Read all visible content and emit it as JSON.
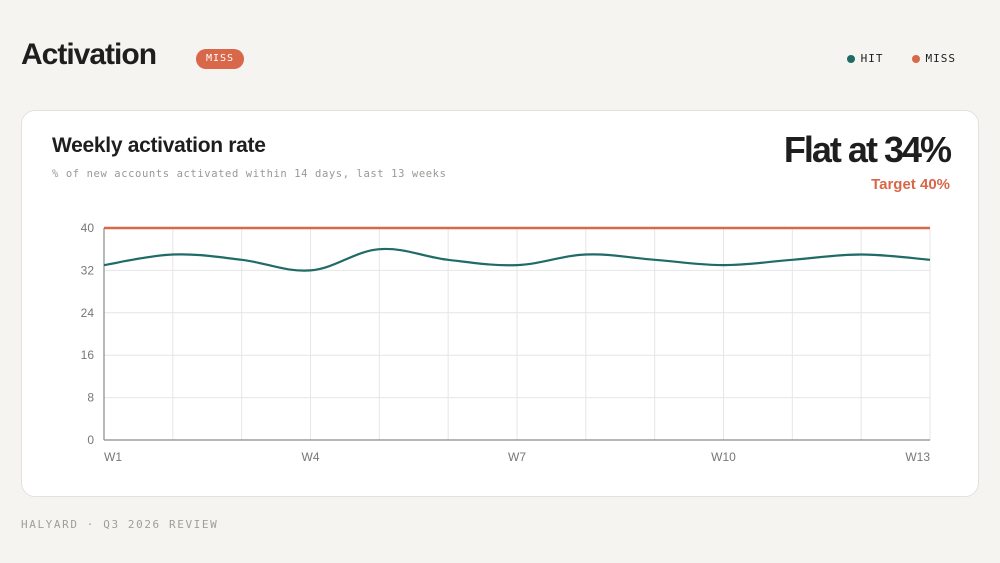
{
  "header": {
    "title": "Activation",
    "status_badge": "MISS",
    "legend": [
      {
        "label": "HIT",
        "color": "#1f6b66"
      },
      {
        "label": "MISS",
        "color": "#d9674a"
      }
    ]
  },
  "card": {
    "title": "Weekly activation rate",
    "subtitle": "% of new accounts activated within 14 days, last 13 weeks",
    "headline": "Flat at 34%",
    "target_label": "Target 40%"
  },
  "footer": {
    "text": "HALYARD · Q3 2026 REVIEW"
  },
  "colors": {
    "series": "#1f6b66",
    "target": "#d9674a",
    "grid": "#e6e6e6",
    "axis": "#8a8a8a"
  },
  "chart_data": {
    "type": "line",
    "x": [
      "W1",
      "W2",
      "W3",
      "W4",
      "W5",
      "W6",
      "W7",
      "W8",
      "W9",
      "W10",
      "W11",
      "W12",
      "W13"
    ],
    "x_tick_labels": [
      "W1",
      "W4",
      "W7",
      "W10",
      "W13"
    ],
    "series": [
      {
        "values": [
          33,
          35,
          34,
          32,
          36,
          34,
          33,
          35,
          34,
          33,
          34,
          35,
          34
        ]
      }
    ],
    "target": 40,
    "ylim": [
      0,
      40
    ],
    "y_ticks": [
      0,
      8,
      16,
      24,
      32,
      40
    ],
    "grid": true
  }
}
